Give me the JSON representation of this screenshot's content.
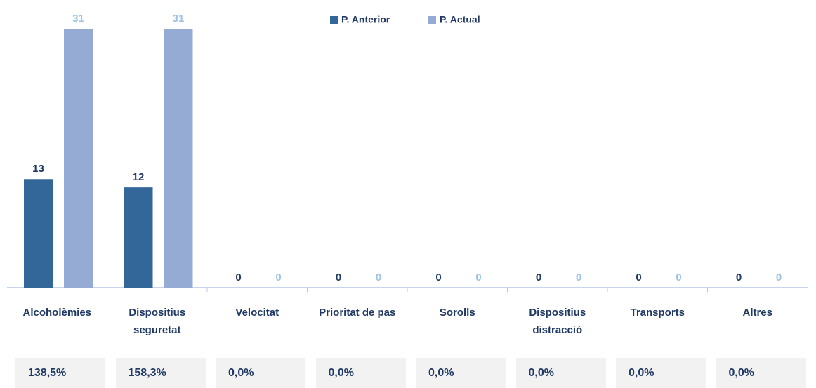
{
  "chart_data": {
    "type": "bar",
    "categories": [
      "Alcoholèmies",
      "Dispositius seguretat",
      "Velocitat",
      "Prioritat de pas",
      "Sorolls",
      "Dispositius distracció",
      "Transports",
      "Altres"
    ],
    "series": [
      {
        "name": "P. Anterior",
        "color": "#336699",
        "label_color": "#1f3864",
        "values": [
          13,
          12,
          0,
          0,
          0,
          0,
          0,
          0
        ]
      },
      {
        "name": "P. Actual",
        "color": "#95abd3",
        "label_color": "#9dc3e6",
        "values": [
          31,
          31,
          0,
          0,
          0,
          0,
          0,
          0
        ]
      }
    ],
    "variation_labels": [
      "138,5%",
      "158,3%",
      "0,0%",
      "0,0%",
      "0,0%",
      "0,0%",
      "0,0%",
      "0,0%"
    ],
    "ylim": [
      0,
      31
    ]
  }
}
